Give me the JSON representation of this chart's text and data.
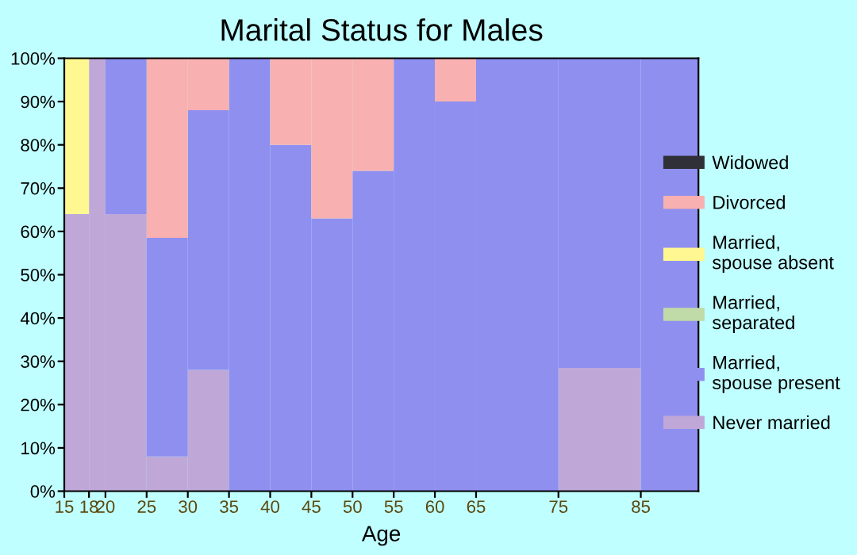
{
  "chart_data": {
    "type": "bar",
    "title": "Marital Status for Males",
    "xlabel": "Age",
    "stacked": true,
    "x": [
      16.5,
      19,
      22.5,
      27.5,
      32.5,
      37.5,
      42.5,
      47.5,
      52.5,
      57.5,
      62.5,
      70,
      80,
      88.5
    ],
    "series": [
      {
        "name": "Never married",
        "color": "#bfa8d8",
        "values": [
          64,
          100,
          64,
          8,
          28,
          0,
          0,
          0,
          0,
          0,
          0,
          0,
          28.5,
          0
        ]
      },
      {
        "name": "Married,\nspouse present",
        "color": "#8f8ff0",
        "values": [
          0,
          0,
          36,
          50.5,
          60,
          100,
          80,
          63,
          74,
          100,
          90,
          100,
          71.5,
          100
        ]
      },
      {
        "name": "Married,\nseparated",
        "color": "#c0daa8",
        "values": [
          0,
          0,
          0,
          0,
          0,
          0,
          0,
          0,
          0,
          0,
          0,
          0,
          0,
          0
        ]
      },
      {
        "name": "Married,\nspouse absent",
        "color": "#fff890",
        "values": [
          36,
          0,
          0,
          0,
          0,
          0,
          0,
          0,
          0,
          0,
          0,
          0,
          0,
          0
        ]
      },
      {
        "name": "Divorced",
        "color": "#f8b0b0",
        "values": [
          0,
          0,
          0,
          41.5,
          12,
          0,
          20,
          37,
          26,
          0,
          10,
          0,
          0,
          0
        ]
      },
      {
        "name": "Widowed",
        "color": "#303038",
        "values": [
          0,
          0,
          0,
          0,
          0,
          0,
          0,
          0,
          0,
          0,
          0,
          0,
          0,
          0
        ]
      }
    ],
    "xlim": [
      15,
      92
    ],
    "xticks": [
      15,
      18,
      20,
      25,
      30,
      35,
      40,
      45,
      50,
      55,
      60,
      65,
      75,
      85
    ],
    "ylim": [
      0,
      100
    ],
    "yticks": [
      {
        "value": 0,
        "label": "0%"
      },
      {
        "value": 10,
        "label": "10%"
      },
      {
        "value": 20,
        "label": "20%"
      },
      {
        "value": 30,
        "label": "30%"
      },
      {
        "value": 40,
        "label": "40%"
      },
      {
        "value": 50,
        "label": "50%"
      },
      {
        "value": 60,
        "label": "60%"
      },
      {
        "value": 70,
        "label": "70%"
      },
      {
        "value": 80,
        "label": "80%"
      },
      {
        "value": 90,
        "label": "90%"
      },
      {
        "value": 100,
        "label": "100%"
      }
    ],
    "grid": false,
    "legend": "right"
  }
}
